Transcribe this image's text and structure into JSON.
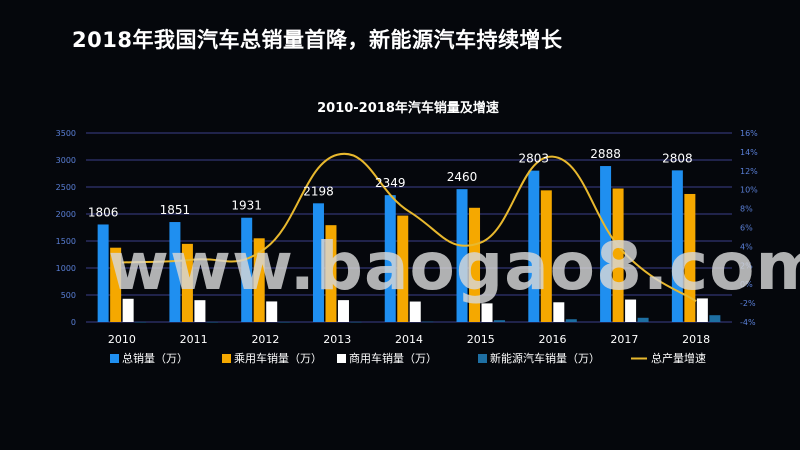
{
  "slide": {
    "title": "2018年我国汽车总销量首降，新能源汽车持续增长",
    "watermark": "www.baogao8.com"
  },
  "colors": {
    "background": "#05070c",
    "gridline": "#3c3f8a",
    "axis_text": "#5a7fd6",
    "total_sales": "#1f8ff0",
    "passenger_cars": "#f5a800",
    "commercial_vehicles": "#ffffff",
    "new_energy": "#1e6fa3",
    "growth_line": "#e8b82e"
  },
  "chart_data": {
    "type": "bar",
    "title": "2010-2018年汽车销量及增速",
    "categories": [
      "2010",
      "2011",
      "2012",
      "2013",
      "2014",
      "2015",
      "2016",
      "2017",
      "2018"
    ],
    "series": [
      {
        "name": "总销量（万）",
        "kind": "bar",
        "axis": "left",
        "values": [
          1806,
          1851,
          1931,
          2198,
          2349,
          2460,
          2803,
          2888,
          2808
        ],
        "labels": [
          "1806",
          "1851",
          "1931",
          "2198",
          "2349",
          "2460",
          "2803",
          "2888",
          "2808"
        ]
      },
      {
        "name": "乘用车销量（万）",
        "kind": "bar",
        "axis": "left",
        "values": [
          1376,
          1447,
          1550,
          1793,
          1970,
          2115,
          2438,
          2472,
          2371
        ]
      },
      {
        "name": "商用车销量（万）",
        "kind": "bar",
        "axis": "left",
        "values": [
          430,
          404,
          381,
          405,
          379,
          345,
          365,
          416,
          437
        ]
      },
      {
        "name": "新能源汽车销量（万）",
        "kind": "bar",
        "axis": "left",
        "values": [
          1,
          1,
          1,
          2,
          7,
          33,
          51,
          78,
          126
        ]
      },
      {
        "name": "总产量增速",
        "kind": "line",
        "axis": "right",
        "values": [
          2.3,
          2.6,
          3.8,
          13.7,
          7.7,
          4.4,
          13.5,
          3.3,
          -1.8
        ]
      }
    ],
    "y_left": {
      "min": 0,
      "max": 3500,
      "step": 500,
      "ticks": [
        "0",
        "500",
        "1000",
        "1500",
        "2000",
        "2500",
        "3000",
        "3500"
      ]
    },
    "y_right": {
      "min": -4,
      "max": 16,
      "step": 2,
      "ticks": [
        "-4%",
        "-2%",
        "0%",
        "2%",
        "4%",
        "6%",
        "8%",
        "10%",
        "12%",
        "14%",
        "16%"
      ]
    },
    "grid": true,
    "legend": "bottom"
  }
}
